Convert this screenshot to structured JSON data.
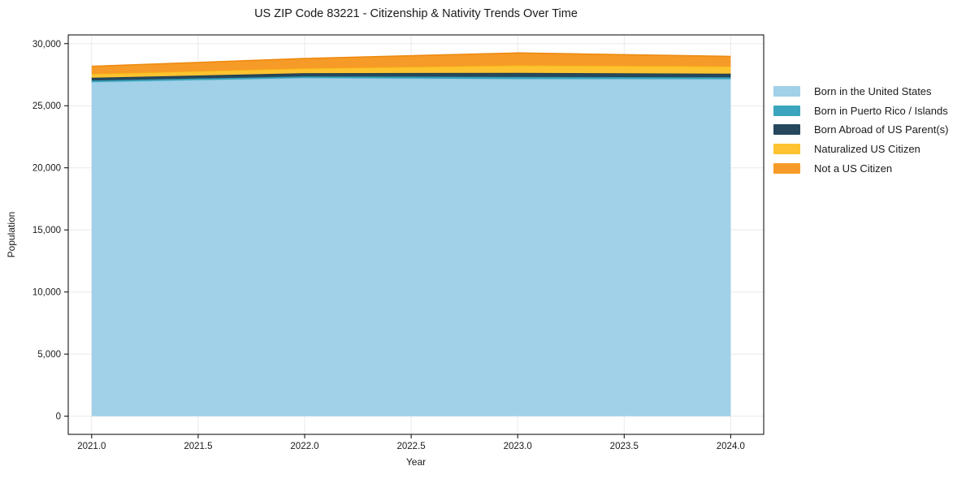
{
  "chart_data": {
    "type": "area",
    "stacked": true,
    "title": "US ZIP Code 83221 - Citizenship & Nativity Trends Over Time",
    "xlabel": "Year",
    "ylabel": "Population",
    "x": [
      2021,
      2022,
      2023,
      2024
    ],
    "series": [
      {
        "name": "Born in the United States",
        "color": "#a1d1e8",
        "edge": "#8fc6e2",
        "values": [
          26900,
          27230,
          27150,
          27140
        ]
      },
      {
        "name": "Born in Puerto Rico / Islands",
        "color": "#3aa5bd",
        "edge": "#2f96ae",
        "values": [
          130,
          130,
          170,
          150
        ]
      },
      {
        "name": "Born Abroad of US Parent(s)",
        "color": "#25485c",
        "edge": "#1d3c4e",
        "values": [
          220,
          260,
          330,
          290
        ]
      },
      {
        "name": "Naturalized US Citizen",
        "color": "#fdc330",
        "edge": "#f5b414",
        "values": [
          310,
          390,
          600,
          590
        ]
      },
      {
        "name": "Not a US Citizen",
        "color": "#f79b28",
        "edge": "#ee8a10",
        "values": [
          610,
          790,
          1000,
          800
        ]
      }
    ],
    "xlim": [
      2020.89,
      2024.155
    ],
    "ylim": [
      -1462,
      30702
    ],
    "x_ticks": [
      {
        "value": 2021.0,
        "label": "2021.0"
      },
      {
        "value": 2021.5,
        "label": "2021.5"
      },
      {
        "value": 2022.0,
        "label": "2022.0"
      },
      {
        "value": 2022.5,
        "label": "2022.5"
      },
      {
        "value": 2023.0,
        "label": "2023.0"
      },
      {
        "value": 2023.5,
        "label": "2023.5"
      },
      {
        "value": 2024.0,
        "label": "2024.0"
      }
    ],
    "y_ticks": [
      {
        "value": 0,
        "label": "0"
      },
      {
        "value": 5000,
        "label": "5,000"
      },
      {
        "value": 10000,
        "label": "10,000"
      },
      {
        "value": 15000,
        "label": "15,000"
      },
      {
        "value": 20000,
        "label": "20,000"
      },
      {
        "value": 25000,
        "label": "25,000"
      },
      {
        "value": 30000,
        "label": "30,000"
      }
    ],
    "grid": true,
    "legend_position": "right"
  },
  "colors": {
    "background": "#ffffff",
    "grid": "#e9e9e9",
    "spine": "#000000",
    "text": "#1a1a1a"
  }
}
